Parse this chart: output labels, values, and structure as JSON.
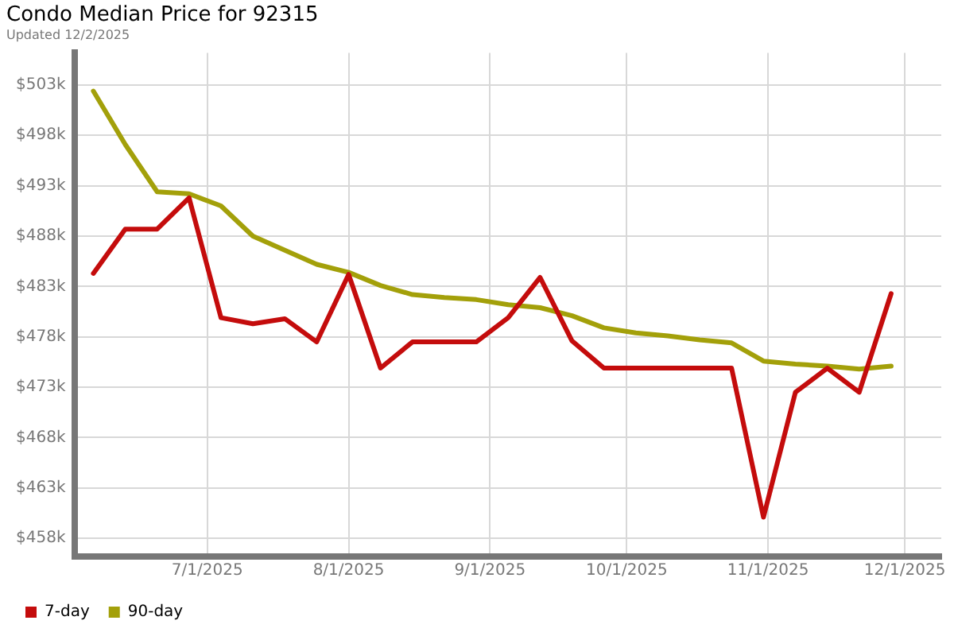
{
  "chart_data": {
    "type": "line",
    "title": "Condo Median Price for 92315",
    "subtitle": "Updated 12/2/2025",
    "x": [
      "2025-06-06",
      "2025-06-13",
      "2025-06-20",
      "2025-06-27",
      "2025-07-04",
      "2025-07-11",
      "2025-07-18",
      "2025-07-25",
      "2025-08-01",
      "2025-08-08",
      "2025-08-15",
      "2025-08-22",
      "2025-08-29",
      "2025-09-05",
      "2025-09-12",
      "2025-09-19",
      "2025-09-26",
      "2025-10-03",
      "2025-10-10",
      "2025-10-17",
      "2025-10-24",
      "2025-10-31",
      "2025-11-07",
      "2025-11-14",
      "2025-11-21",
      "2025-11-28"
    ],
    "series": [
      {
        "name": "7-day",
        "color": "#c40c0c",
        "values": [
          484.3,
          488.7,
          488.7,
          491.8,
          479.9,
          479.3,
          479.8,
          477.5,
          484.2,
          474.9,
          477.5,
          477.5,
          477.5,
          479.9,
          483.9,
          477.6,
          474.9,
          474.9,
          474.9,
          474.9,
          474.9,
          460.1,
          472.5,
          474.9,
          472.5,
          482.3
        ]
      },
      {
        "name": "90-day",
        "color": "#a3a00a",
        "values": [
          502.4,
          497.1,
          492.4,
          492.2,
          491.0,
          488.0,
          486.6,
          485.2,
          484.4,
          483.1,
          482.2,
          481.9,
          481.7,
          481.2,
          480.9,
          480.1,
          478.9,
          478.4,
          478.1,
          477.7,
          477.4,
          475.6,
          475.3,
          475.1,
          474.8,
          475.1
        ]
      }
    ],
    "xlim": [
      "2025-06-02",
      "2025-12-09"
    ],
    "xticks": [
      {
        "value": "2025-07-01",
        "label": "7/1/2025"
      },
      {
        "value": "2025-08-01",
        "label": "8/1/2025"
      },
      {
        "value": "2025-09-01",
        "label": "9/1/2025"
      },
      {
        "value": "2025-10-01",
        "label": "10/1/2025"
      },
      {
        "value": "2025-11-01",
        "label": "11/1/2025"
      },
      {
        "value": "2025-12-01",
        "label": "12/1/2025"
      }
    ],
    "ylim": [
      456.2,
      506.2
    ],
    "yticks": [
      {
        "value": 458,
        "label": "$458k"
      },
      {
        "value": 463,
        "label": "$463k"
      },
      {
        "value": 468,
        "label": "$468k"
      },
      {
        "value": 473,
        "label": "$473k"
      },
      {
        "value": 478,
        "label": "$478k"
      },
      {
        "value": 483,
        "label": "$483k"
      },
      {
        "value": 488,
        "label": "$488k"
      },
      {
        "value": 493,
        "label": "$493k"
      },
      {
        "value": 498,
        "label": "$498k"
      },
      {
        "value": 503,
        "label": "$503k"
      }
    ],
    "grid": true,
    "legend": "bottom left",
    "marker": "none",
    "line_style": "solid"
  }
}
